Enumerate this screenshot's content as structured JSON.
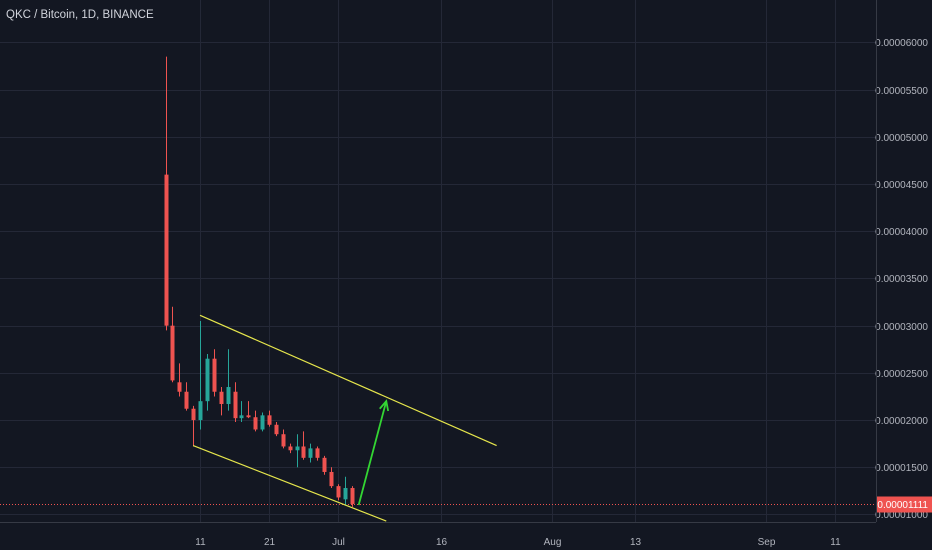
{
  "header": {
    "symbol_title": "QKC / Bitcoin, 1D, BINANCE"
  },
  "colors": {
    "background": "#131722",
    "grid": "#242837",
    "up": "#26a69a",
    "down": "#ef5350",
    "channel": "#e6e64c",
    "arrow": "#33d633",
    "price_line": "#ef5350",
    "axis_text": "#b2b5be"
  },
  "chart_data": {
    "type": "candlestick",
    "title": "QKC / Bitcoin, 1D, BINANCE",
    "y_axis": {
      "ticks": [
        "0.00006000",
        "0.00005500",
        "0.00005000",
        "0.00004500",
        "0.00004000",
        "0.00003500",
        "0.00003000",
        "0.00002500",
        "0.00002000",
        "0.00001500",
        "0.00001000"
      ],
      "range": [
        9.2e-06,
        6.45e-05
      ]
    },
    "x_axis": {
      "ticks": [
        {
          "label": "11",
          "date": "2018-06-11"
        },
        {
          "label": "21",
          "date": "2018-06-21"
        },
        {
          "label": "Jul",
          "date": "2018-07-01"
        },
        {
          "label": "16",
          "date": "2018-07-16"
        },
        {
          "label": "Aug",
          "date": "2018-08-01"
        },
        {
          "label": "13",
          "date": "2018-08-13"
        },
        {
          "label": "Sep",
          "date": "2018-09-01"
        },
        {
          "label": "11",
          "date": "2018-09-11"
        }
      ],
      "range": [
        "2018-05-13",
        "2018-09-17"
      ]
    },
    "current_price": {
      "value": 1.111e-05,
      "label": "0.00001111"
    },
    "candles": [
      {
        "date": "2018-06-06",
        "open": 4.6e-05,
        "high": 5.85e-05,
        "low": 2.95e-05,
        "close": 3e-05
      },
      {
        "date": "2018-06-07",
        "open": 3e-05,
        "high": 3.2e-05,
        "low": 2.4e-05,
        "close": 2.42e-05
      },
      {
        "date": "2018-06-08",
        "open": 2.4e-05,
        "high": 2.6e-05,
        "low": 2.25e-05,
        "close": 2.3e-05
      },
      {
        "date": "2018-06-09",
        "open": 2.3e-05,
        "high": 2.4e-05,
        "low": 2.1e-05,
        "close": 2.12e-05
      },
      {
        "date": "2018-06-10",
        "open": 2.12e-05,
        "high": 2.15e-05,
        "low": 1.72e-05,
        "close": 2e-05
      },
      {
        "date": "2018-06-11",
        "open": 2e-05,
        "high": 3.05e-05,
        "low": 1.9e-05,
        "close": 2.2e-05
      },
      {
        "date": "2018-06-12",
        "open": 2.2e-05,
        "high": 2.7e-05,
        "low": 2.1e-05,
        "close": 2.65e-05
      },
      {
        "date": "2018-06-13",
        "open": 2.65e-05,
        "high": 2.75e-05,
        "low": 2.25e-05,
        "close": 2.3e-05
      },
      {
        "date": "2018-06-14",
        "open": 2.3e-05,
        "high": 2.35e-05,
        "low": 2.05e-05,
        "close": 2.17e-05
      },
      {
        "date": "2018-06-15",
        "open": 2.17e-05,
        "high": 2.75e-05,
        "low": 2.1e-05,
        "close": 2.35e-05
      },
      {
        "date": "2018-06-16",
        "open": 2.3e-05,
        "high": 2.4e-05,
        "low": 1.98e-05,
        "close": 2.02e-05
      },
      {
        "date": "2018-06-17",
        "open": 2.02e-05,
        "high": 2.2e-05,
        "low": 1.98e-05,
        "close": 2.05e-05
      },
      {
        "date": "2018-06-18",
        "open": 2.05e-05,
        "high": 2.2e-05,
        "low": 2.02e-05,
        "close": 2.03e-05
      },
      {
        "date": "2018-06-19",
        "open": 2.03e-05,
        "high": 2.1e-05,
        "low": 1.88e-05,
        "close": 1.9e-05
      },
      {
        "date": "2018-06-20",
        "open": 1.9e-05,
        "high": 2.08e-05,
        "low": 1.88e-05,
        "close": 2.05e-05
      },
      {
        "date": "2018-06-21",
        "open": 2.05e-05,
        "high": 2.1e-05,
        "low": 1.93e-05,
        "close": 1.95e-05
      },
      {
        "date": "2018-06-22",
        "open": 1.95e-05,
        "high": 1.98e-05,
        "low": 1.83e-05,
        "close": 1.85e-05
      },
      {
        "date": "2018-06-23",
        "open": 1.85e-05,
        "high": 1.9e-05,
        "low": 1.7e-05,
        "close": 1.72e-05
      },
      {
        "date": "2018-06-24",
        "open": 1.72e-05,
        "high": 1.75e-05,
        "low": 1.65e-05,
        "close": 1.68e-05
      },
      {
        "date": "2018-06-25",
        "open": 1.68e-05,
        "high": 1.85e-05,
        "low": 1.5e-05,
        "close": 1.72e-05
      },
      {
        "date": "2018-06-26",
        "open": 1.72e-05,
        "high": 1.88e-05,
        "low": 1.58e-05,
        "close": 1.6e-05
      },
      {
        "date": "2018-06-27",
        "open": 1.6e-05,
        "high": 1.75e-05,
        "low": 1.55e-05,
        "close": 1.7e-05
      },
      {
        "date": "2018-06-28",
        "open": 1.7e-05,
        "high": 1.72e-05,
        "low": 1.57e-05,
        "close": 1.6e-05
      },
      {
        "date": "2018-06-29",
        "open": 1.6e-05,
        "high": 1.62e-05,
        "low": 1.42e-05,
        "close": 1.45e-05
      },
      {
        "date": "2018-06-30",
        "open": 1.45e-05,
        "high": 1.5e-05,
        "low": 1.28e-05,
        "close": 1.3e-05
      },
      {
        "date": "2018-07-01",
        "open": 1.3e-05,
        "high": 1.32e-05,
        "low": 1.15e-05,
        "close": 1.18e-05
      },
      {
        "date": "2018-07-02",
        "open": 1.16e-05,
        "high": 1.4e-05,
        "low": 1.1e-05,
        "close": 1.28e-05
      },
      {
        "date": "2018-07-03",
        "open": 1.28e-05,
        "high": 1.3e-05,
        "low": 1.08e-05,
        "close": 1.111e-05
      }
    ],
    "drawings": [
      {
        "type": "trend-line",
        "name": "channel-upper-line",
        "from": {
          "date": "2018-06-11",
          "value": 3.11e-05
        },
        "to": {
          "date": "2018-07-24",
          "value": 1.73e-05
        }
      },
      {
        "type": "trend-line",
        "name": "channel-lower-line",
        "from": {
          "date": "2018-06-10",
          "value": 1.73e-05
        },
        "to": {
          "date": "2018-07-08",
          "value": 9.3e-06
        }
      },
      {
        "type": "arrow",
        "name": "projection-arrow",
        "from": {
          "date": "2018-07-04",
          "value": 1.1e-05
        },
        "to": {
          "date": "2018-07-08",
          "value": 2.2e-05
        }
      }
    ]
  }
}
